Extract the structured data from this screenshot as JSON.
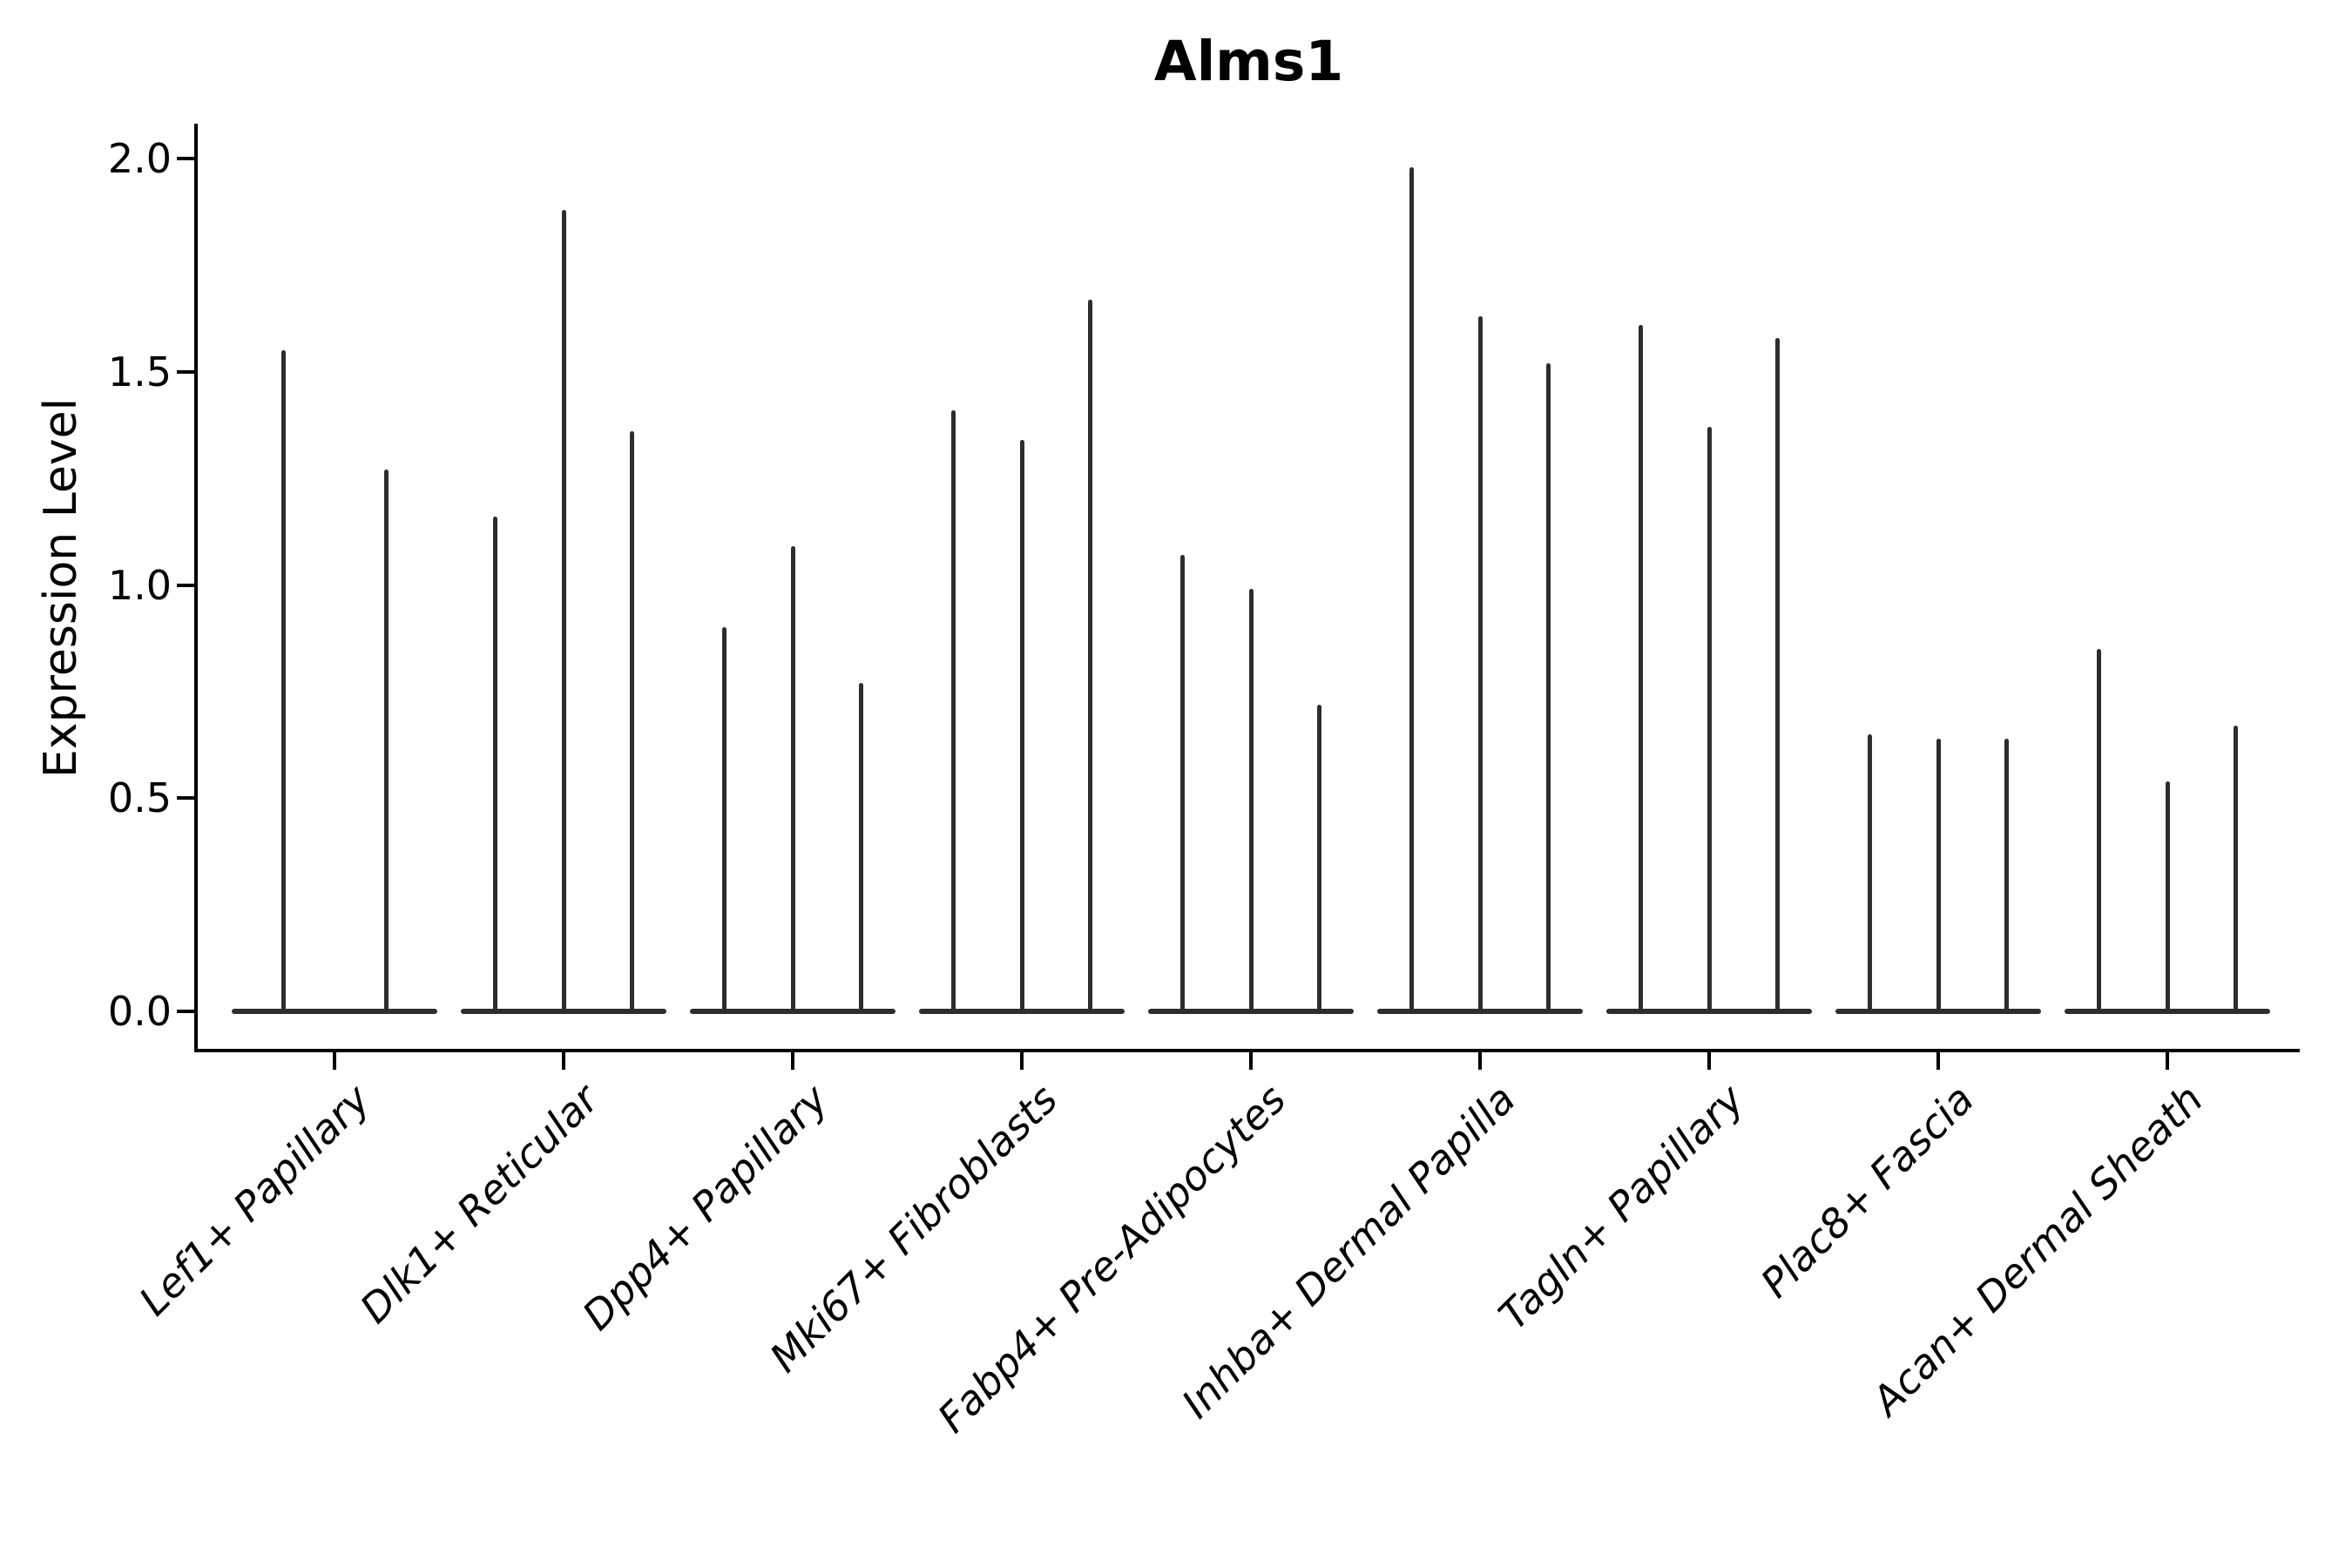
{
  "title": "Alms1",
  "y_axis": {
    "label": "Expression Level",
    "tick_labels": [
      "2.0",
      "1.5",
      "1.0",
      "0.5",
      "0.0"
    ]
  },
  "chart_data": {
    "type": "violin",
    "title": "Alms1",
    "ylabel": "Expression Level",
    "ylim": [
      0,
      2.08
    ],
    "yticks": [
      2.0,
      1.5,
      1.0,
      0.5,
      0.0
    ],
    "grid": false,
    "legend": false,
    "description": "Seurat-style violin plot of Alms1 expression; violins are collapsed to thin spikes (max expression) over wide flat bases at zero",
    "categories": [
      "Lef1+ Papillary",
      "Dlk1+ Reticular",
      "Dpp4+ Papillary",
      "Mki67+ Fibroblasts",
      "Fabp4+ Pre-Adipocytes",
      "Inhba+ Dermal Papilla",
      "Tagln+ Papillary",
      "Plac8+ Fascia",
      "Acan+ Dermal Sheath"
    ],
    "series": [
      {
        "category": "Lef1+ Papillary",
        "violin_maxima": [
          1.55,
          1.27
        ]
      },
      {
        "category": "Dlk1+ Reticular",
        "violin_maxima": [
          1.16,
          1.88,
          1.36
        ]
      },
      {
        "category": "Dpp4+ Papillary",
        "violin_maxima": [
          0.9,
          1.09,
          0.77
        ]
      },
      {
        "category": "Mki67+ Fibroblasts",
        "violin_maxima": [
          1.41,
          1.34,
          1.67
        ]
      },
      {
        "category": "Fabp4+ Pre-Adipocytes",
        "violin_maxima": [
          1.07,
          0.99,
          0.72
        ]
      },
      {
        "category": "Inhba+ Dermal Papilla",
        "violin_maxima": [
          1.98,
          1.63,
          1.52
        ]
      },
      {
        "category": "Tagln+ Papillary",
        "violin_maxima": [
          1.61,
          1.37,
          1.58
        ]
      },
      {
        "category": "Plac8+ Fascia",
        "violin_maxima": [
          0.65,
          0.64,
          0.64
        ]
      },
      {
        "category": "Acan+ Dermal Sheath",
        "violin_maxima": [
          0.85,
          0.54,
          0.67
        ]
      }
    ],
    "colors": {
      "violin": "#2d2d2d",
      "axis": "#000000",
      "text": "#000000",
      "background": "#ffffff"
    }
  }
}
